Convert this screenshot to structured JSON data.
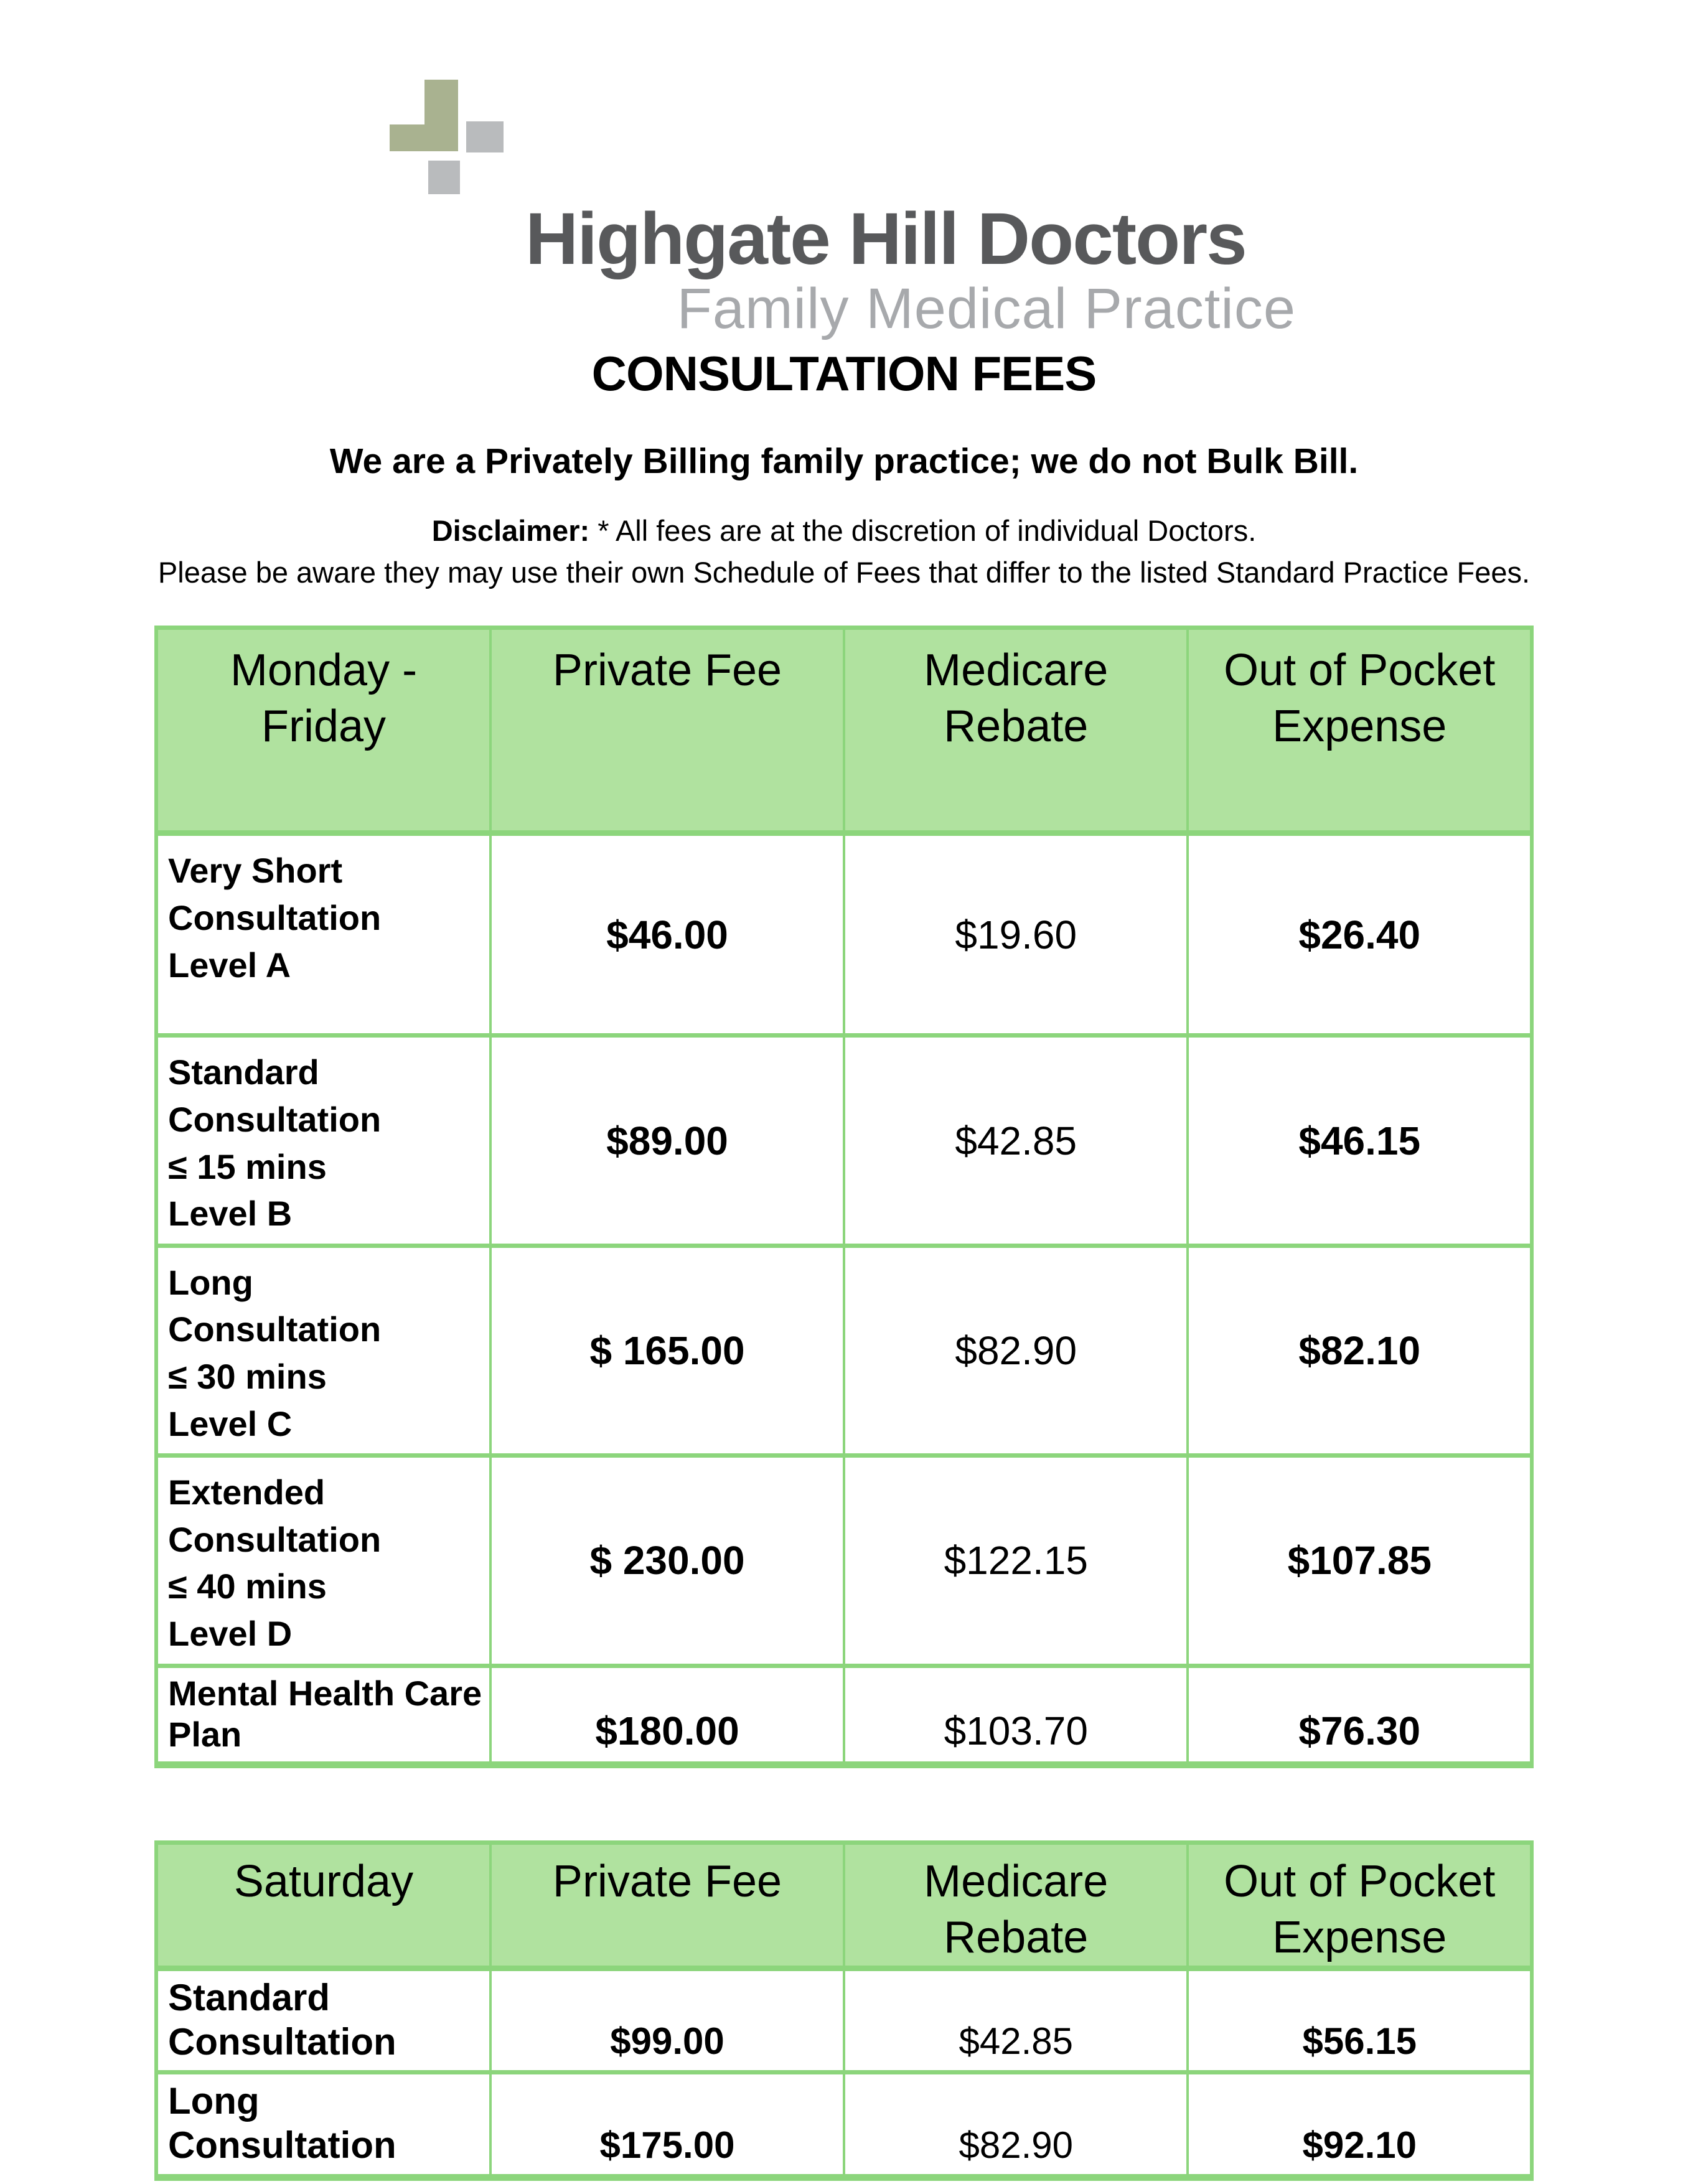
{
  "logo": {
    "icon": "medical-cross-icon",
    "title": "Highgate Hill Doctors",
    "subtitle": "Family Medical Practice",
    "colors": {
      "cross_green": "#a9b290",
      "cross_gray": "#b9bbbd",
      "name": "#58595b",
      "tagline": "#a7a9ac"
    }
  },
  "page": {
    "title": "CONSULTATION FEES",
    "intro": "We are a Privately Billing family practice; we do not Bulk Bill.",
    "disclaimer_label": "Disclaimer:",
    "disclaimer_text": " * All fees are at the discretion of individual Doctors.",
    "disclaimer_line2": "Please be aware they may use their own Schedule of Fees that differ to the listed Standard Practice Fees."
  },
  "table_style": {
    "header_bg": "#b0e29f",
    "border_color": "#8cd57c",
    "text_color": "#000000"
  },
  "tables": [
    {
      "name": "weekday-fees",
      "headers": {
        "day": "Monday -\nFriday",
        "private": "Private Fee",
        "rebate": "Medicare\nRebate",
        "oop": "Out of Pocket\nExpense"
      },
      "rows": [
        {
          "label": "Very Short\nConsultation\nLevel A",
          "private": "$46.00",
          "rebate": "$19.60",
          "oop": "$26.40"
        },
        {
          "label": "Standard\nConsultation\n≤ 15 mins\nLevel B",
          "private": "$89.00",
          "rebate": "$42.85",
          "oop": "$46.15"
        },
        {
          "label": "Long\nConsultation\n≤ 30 mins\nLevel C",
          "private": "$ 165.00",
          "rebate": "$82.90",
          "oop": "$82.10"
        },
        {
          "label": "Extended\nConsultation\n≤ 40 mins\nLevel D",
          "private": "$ 230.00",
          "rebate": "$122.15",
          "oop": "$107.85"
        },
        {
          "label": "Mental Health Care\nPlan",
          "private": "$180.00",
          "rebate": "$103.70",
          "oop": "$76.30"
        }
      ]
    },
    {
      "name": "saturday-fees",
      "headers": {
        "day": "Saturday",
        "private": "Private Fee",
        "rebate": "Medicare\nRebate",
        "oop": "Out of Pocket\nExpense"
      },
      "rows": [
        {
          "label": "Standard\nConsultation",
          "private": "$99.00",
          "rebate": "$42.85",
          "oop": "$56.15"
        },
        {
          "label": "Long\nConsultation",
          "private": "$175.00",
          "rebate": "$82.90",
          "oop": "$92.10"
        }
      ]
    }
  ]
}
